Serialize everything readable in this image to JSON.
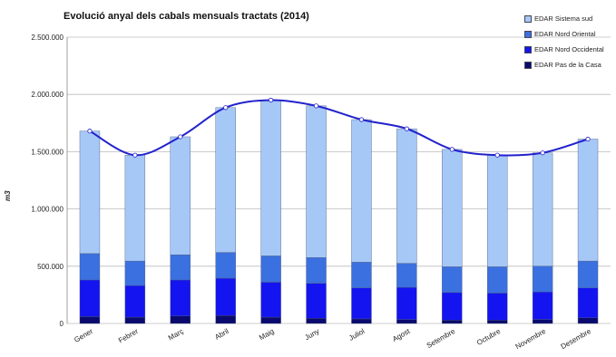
{
  "chart_data": {
    "type": "bar",
    "stacked": true,
    "title": "Evolució anyal dels cabals mensuals tractats (2014)",
    "ylabel": "m3",
    "xlabel": "",
    "ylim": [
      0,
      2500000
    ],
    "yticks": [
      "0",
      "500.000",
      "1.000.000",
      "1.500.000",
      "2.000.000",
      "2.500.000"
    ],
    "ytick_values": [
      0,
      500000,
      1000000,
      1500000,
      2000000,
      2500000
    ],
    "grid": true,
    "legend_position": "top-right",
    "categories": [
      "Gener",
      "Febrer",
      "Març",
      "Abril",
      "Maig",
      "Juny",
      "Juliol",
      "Agost",
      "Setembre",
      "Octubre",
      "Novembre",
      "Desembre"
    ],
    "series": [
      {
        "name": "EDAR Pas de la Casa",
        "color": "#0a0a6e",
        "values": [
          60000,
          55000,
          65000,
          70000,
          55000,
          45000,
          40000,
          35000,
          30000,
          30000,
          35000,
          50000
        ]
      },
      {
        "name": "EDAR Nord Occidental",
        "color": "#1414f0",
        "values": [
          320000,
          275000,
          315000,
          325000,
          305000,
          305000,
          270000,
          280000,
          240000,
          235000,
          240000,
          260000
        ]
      },
      {
        "name": "EDAR Nord Oriental",
        "color": "#3b70e0",
        "values": [
          230000,
          215000,
          220000,
          225000,
          230000,
          225000,
          225000,
          210000,
          225000,
          230000,
          225000,
          235000
        ]
      },
      {
        "name": "EDAR Sistema sud",
        "color": "#a6c8f7",
        "values": [
          1070000,
          925000,
          1030000,
          1265000,
          1360000,
          1325000,
          1245000,
          1175000,
          1025000,
          975000,
          990000,
          1065000
        ]
      }
    ],
    "totals": [
      1680000,
      1470000,
      1630000,
      1885000,
      1950000,
      1900000,
      1780000,
      1700000,
      1520000,
      1470000,
      1490000,
      1610000
    ],
    "line_color": "#2222cc"
  }
}
